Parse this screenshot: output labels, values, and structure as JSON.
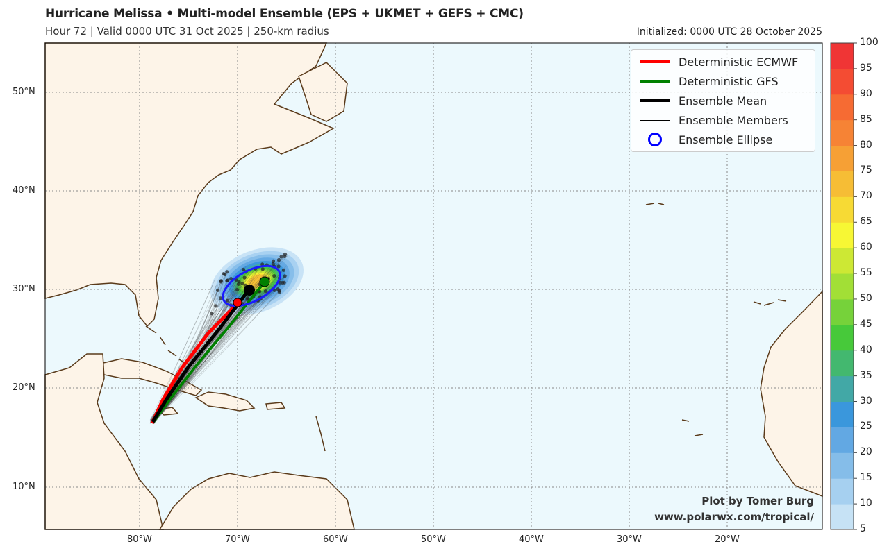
{
  "header": {
    "title": "Hurricane Melissa • Multi-model Ensemble (EPS + UKMET + GEFS + CMC)",
    "subtitle": "Hour 72 | Valid 0000 UTC 31 Oct 2025 | 250-km radius",
    "initialized": "Initialized: 0000 UTC 28 October 2025"
  },
  "legend": [
    {
      "label": "Deterministic ECMWF",
      "color": "#ff0000",
      "symbol": "thick-line"
    },
    {
      "label": "Deterministic GFS",
      "color": "#008000",
      "symbol": "thick-line"
    },
    {
      "label": "Ensemble Mean",
      "color": "#000000",
      "symbol": "thick-line"
    },
    {
      "label": "Ensemble Members",
      "color": "#000000",
      "symbol": "thin-line"
    },
    {
      "label": "Ensemble Ellipse",
      "color": "#0000ff",
      "symbol": "circle"
    }
  ],
  "credit": {
    "line1": "Plot by Tomer Burg",
    "line2": "www.polarwx.com/tropical/"
  },
  "axes": {
    "lat_labels": [
      "50°N",
      "40°N",
      "30°N",
      "20°N",
      "10°N"
    ],
    "lon_labels": [
      "80°W",
      "70°W",
      "60°W",
      "50°W",
      "40°W",
      "30°W",
      "20°W"
    ]
  },
  "colorbar": {
    "ticks": [
      "100",
      "95",
      "90",
      "85",
      "80",
      "75",
      "70",
      "65",
      "60",
      "55",
      "50",
      "45",
      "40",
      "35",
      "30",
      "25",
      "20",
      "15",
      "10",
      "5"
    ],
    "colors": [
      "#c6e2f5",
      "#a6d0f0",
      "#85bde9",
      "#62a8e3",
      "#3a97dc",
      "#42a8a6",
      "#43b86f",
      "#47c93a",
      "#76d23a",
      "#a2df36",
      "#cde834",
      "#f7f734",
      "#f7da34",
      "#f6bd35",
      "#f6a035",
      "#f68335",
      "#f66b33",
      "#f44c33",
      "#f03535"
    ]
  },
  "colors": {
    "ocean": "#ecf9fd",
    "land": "#fdf4e8",
    "coast": "#5a3a1a",
    "grid": "#888888"
  }
}
